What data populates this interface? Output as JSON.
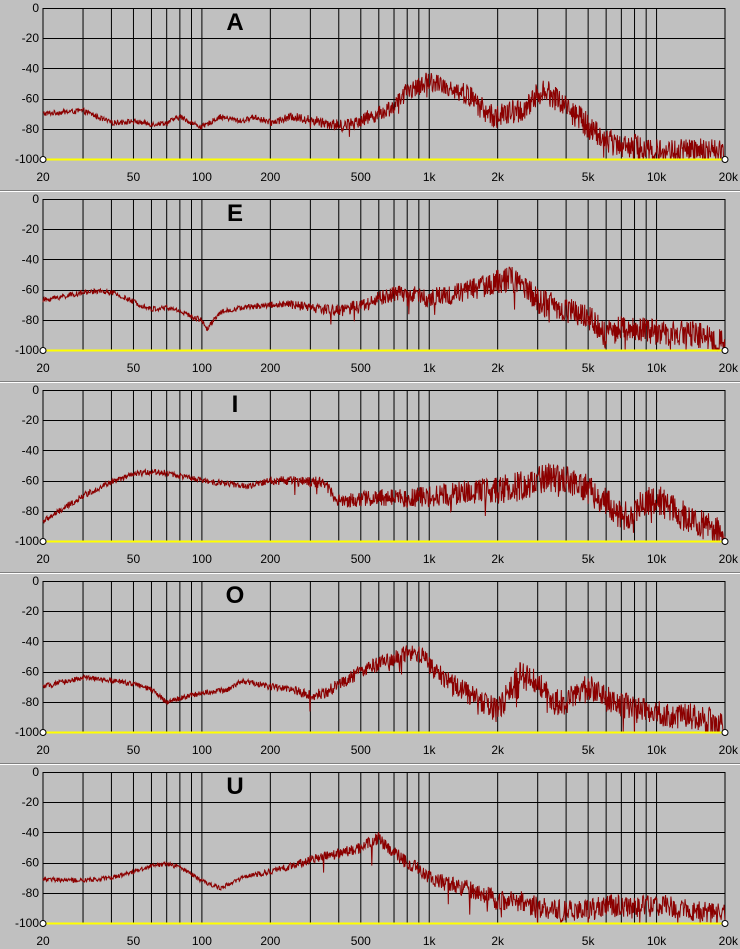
{
  "chart_data": [
    {
      "type": "line",
      "title": "A",
      "xscale": "log",
      "xlim": [
        20,
        20000
      ],
      "ylim": [
        -100,
        0
      ],
      "grid": true,
      "line_color": "#8b0000",
      "baseline_color": "#ffff00",
      "x_tick_values": [
        20,
        50,
        100,
        200,
        500,
        1000,
        2000,
        5000,
        10000,
        20000
      ],
      "x_tick_labels": [
        "20",
        "50",
        "100",
        "200",
        "500",
        "1k",
        "2k",
        "5k",
        "10k",
        "20k"
      ],
      "y_tick_values": [
        0,
        -20,
        -40,
        -60,
        -80,
        -100
      ],
      "y_tick_labels": [
        "0",
        "-20",
        "-40",
        "-60",
        "-80",
        "-100"
      ],
      "noise_level": 7,
      "series": [
        {
          "x": [
            20,
            30,
            40,
            50,
            60,
            70,
            80,
            90,
            100,
            120,
            150,
            170,
            200,
            250,
            300,
            350,
            400,
            450,
            500,
            600,
            700,
            800,
            900,
            1000,
            1200,
            1500,
            1800,
            2000,
            2500,
            2800,
            3000,
            3500,
            4000,
            5000,
            6000,
            8000,
            10000,
            15000,
            20000
          ],
          "y": [
            -70,
            -68,
            -76,
            -75,
            -77,
            -76,
            -72,
            -76,
            -79,
            -72,
            -75,
            -72,
            -76,
            -72,
            -74,
            -76,
            -78,
            -77,
            -74,
            -70,
            -65,
            -55,
            -52,
            -48,
            -52,
            -58,
            -70,
            -72,
            -68,
            -65,
            -55,
            -58,
            -65,
            -78,
            -88,
            -92,
            -95,
            -95,
            -96
          ]
        }
      ]
    },
    {
      "type": "line",
      "title": "E",
      "xscale": "log",
      "xlim": [
        20,
        20000
      ],
      "ylim": [
        -100,
        0
      ],
      "grid": true,
      "line_color": "#8b0000",
      "baseline_color": "#ffff00",
      "x_tick_values": [
        20,
        50,
        100,
        200,
        500,
        1000,
        2000,
        5000,
        10000,
        20000
      ],
      "x_tick_labels": [
        "20",
        "50",
        "100",
        "200",
        "500",
        "1k",
        "2k",
        "5k",
        "10k",
        "20k"
      ],
      "y_tick_values": [
        0,
        -20,
        -40,
        -60,
        -80,
        -100
      ],
      "y_tick_labels": [
        "0",
        "-20",
        "-40",
        "-60",
        "-80",
        "-100"
      ],
      "noise_level": 7,
      "series": [
        {
          "x": [
            20,
            30,
            35,
            40,
            50,
            60,
            70,
            80,
            90,
            100,
            105,
            120,
            150,
            200,
            250,
            300,
            400,
            500,
            600,
            700,
            800,
            1000,
            1200,
            1500,
            2000,
            2300,
            2500,
            2800,
            3000,
            3500,
            4000,
            5000,
            6000,
            7000,
            8000,
            10000,
            15000,
            20000
          ],
          "y": [
            -67,
            -62,
            -61,
            -62,
            -68,
            -73,
            -72,
            -74,
            -78,
            -80,
            -86,
            -75,
            -72,
            -70,
            -70,
            -72,
            -74,
            -71,
            -66,
            -63,
            -62,
            -66,
            -63,
            -60,
            -55,
            -52,
            -58,
            -62,
            -68,
            -70,
            -74,
            -78,
            -90,
            -85,
            -86,
            -88,
            -90,
            -96
          ]
        }
      ]
    },
    {
      "type": "line",
      "title": "I",
      "xscale": "log",
      "xlim": [
        20,
        20000
      ],
      "ylim": [
        -100,
        0
      ],
      "grid": true,
      "line_color": "#8b0000",
      "baseline_color": "#ffff00",
      "x_tick_values": [
        20,
        50,
        100,
        200,
        500,
        1000,
        2000,
        5000,
        10000,
        20000
      ],
      "x_tick_labels": [
        "20",
        "50",
        "100",
        "200",
        "500",
        "1k",
        "2k",
        "5k",
        "10k",
        "20k"
      ],
      "y_tick_values": [
        0,
        -20,
        -40,
        -60,
        -80,
        -100
      ],
      "y_tick_labels": [
        "0",
        "-20",
        "-40",
        "-60",
        "-80",
        "-100"
      ],
      "noise_level": 8,
      "series": [
        {
          "x": [
            20,
            25,
            30,
            40,
            50,
            60,
            70,
            100,
            130,
            160,
            200,
            250,
            300,
            350,
            400,
            500,
            600,
            700,
            800,
            1000,
            1500,
            2000,
            2500,
            3000,
            3500,
            4000,
            5000,
            6000,
            7000,
            8000,
            9000,
            10000,
            12000,
            15000,
            20000
          ],
          "y": [
            -87,
            -78,
            -70,
            -61,
            -56,
            -54,
            -55,
            -60,
            -62,
            -64,
            -60,
            -60,
            -61,
            -62,
            -74,
            -72,
            -72,
            -70,
            -72,
            -70,
            -68,
            -66,
            -64,
            -60,
            -58,
            -60,
            -66,
            -74,
            -84,
            -80,
            -74,
            -72,
            -80,
            -88,
            -96
          ]
        }
      ]
    },
    {
      "type": "line",
      "title": "O",
      "xscale": "log",
      "xlim": [
        20,
        20000
      ],
      "ylim": [
        -100,
        0
      ],
      "grid": true,
      "line_color": "#8b0000",
      "baseline_color": "#ffff00",
      "x_tick_values": [
        20,
        50,
        100,
        200,
        500,
        1000,
        2000,
        5000,
        10000,
        20000
      ],
      "x_tick_labels": [
        "20",
        "50",
        "100",
        "200",
        "500",
        "1k",
        "2k",
        "5k",
        "10k",
        "20k"
      ],
      "y_tick_values": [
        0,
        -20,
        -40,
        -60,
        -80,
        -100
      ],
      "y_tick_labels": [
        "0",
        "-20",
        "-40",
        "-60",
        "-80",
        "-100"
      ],
      "noise_level": 7,
      "series": [
        {
          "x": [
            20,
            30,
            40,
            50,
            60,
            70,
            100,
            130,
            150,
            200,
            250,
            300,
            350,
            400,
            500,
            600,
            700,
            800,
            900,
            1000,
            1200,
            1500,
            2000,
            2500,
            3000,
            3500,
            4000,
            5000,
            6000,
            8000,
            10000,
            15000,
            20000
          ],
          "y": [
            -70,
            -64,
            -66,
            -68,
            -72,
            -80,
            -74,
            -72,
            -66,
            -70,
            -72,
            -76,
            -74,
            -68,
            -60,
            -55,
            -52,
            -48,
            -47,
            -56,
            -66,
            -75,
            -86,
            -62,
            -68,
            -80,
            -80,
            -70,
            -78,
            -85,
            -88,
            -90,
            -95
          ]
        }
      ]
    },
    {
      "type": "line",
      "title": "U",
      "xscale": "log",
      "xlim": [
        20,
        20000
      ],
      "ylim": [
        -100,
        0
      ],
      "grid": true,
      "line_color": "#8b0000",
      "baseline_color": "#ffff00",
      "x_tick_values": [
        20,
        50,
        100,
        200,
        500,
        1000,
        2000,
        5000,
        10000,
        20000
      ],
      "x_tick_labels": [
        "20",
        "50",
        "100",
        "200",
        "500",
        "1k",
        "2k",
        "5k",
        "10k",
        "20k"
      ],
      "y_tick_values": [
        0,
        -20,
        -40,
        -60,
        -80,
        -100
      ],
      "y_tick_labels": [
        "0",
        "-20",
        "-40",
        "-60",
        "-80",
        "-100"
      ],
      "noise_level": 6,
      "series": [
        {
          "x": [
            20,
            30,
            40,
            50,
            60,
            70,
            80,
            100,
            120,
            150,
            200,
            250,
            300,
            400,
            500,
            600,
            700,
            800,
            1000,
            1500,
            2000,
            2500,
            3000,
            4000,
            5000,
            6000,
            8000,
            10000,
            15000,
            20000
          ],
          "y": [
            -71,
            -72,
            -70,
            -66,
            -62,
            -61,
            -63,
            -72,
            -77,
            -70,
            -66,
            -62,
            -58,
            -54,
            -50,
            -44,
            -54,
            -60,
            -70,
            -78,
            -84,
            -86,
            -90,
            -92,
            -92,
            -88,
            -90,
            -88,
            -92,
            -95
          ]
        }
      ]
    }
  ]
}
